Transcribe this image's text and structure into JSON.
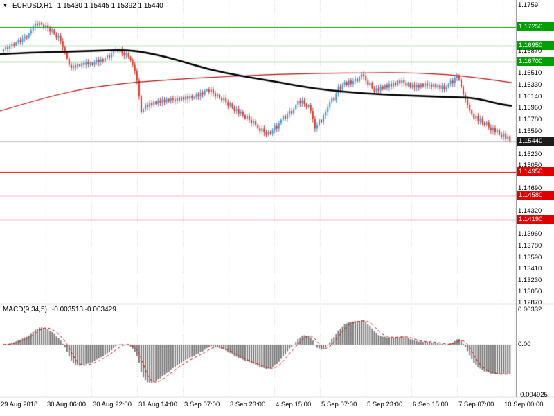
{
  "header": {
    "symbol": "EURUSD,H1",
    "quote": "1.15430 1.15445 1.15392 1.15440",
    "collapse_icon": "triangle-down-icon"
  },
  "macd_panel": {
    "label": "MACD(9,34,5)",
    "values": "-0.003513 -0.003429"
  },
  "colors": {
    "up_candle": "#3B97D3",
    "down_candle": "#E02F23",
    "ma_slow": "#000000",
    "ma_fast": "#B01010",
    "level_green": "#00A000",
    "level_red": "#E00000",
    "current_line": "#BDBDBD",
    "grid": "#D8D8D8",
    "separator": "#8C8C8C",
    "macd_bar": "#787878",
    "macd_signal": "#CC0000",
    "macd_zero": "#C4C4C4"
  },
  "chart_data": {
    "type": "candlestick",
    "title": "EURUSD,H1",
    "symbol": "EURUSD",
    "timeframe": "H1",
    "ohlc_display": {
      "open": "1.15430",
      "high": "1.15445",
      "low": "1.15392",
      "close": "1.15440"
    },
    "x_axis": {
      "labels": [
        "29 Aug 2018",
        "30 Aug 06:00",
        "30 Aug 22:00",
        "31 Aug 14:00",
        "3 Sep 07:00",
        "3 Sep 23:00",
        "4 Sep 15:00",
        "5 Sep 07:00",
        "5 Sep 23:00",
        "6 Sep 15:00",
        "7 Sep 07:00",
        "10 Sep 00:00"
      ]
    },
    "y_axis": {
      "ticks": [
        {
          "label": "1.1759",
          "value": 1.1759,
          "type": "normal"
        },
        {
          "label": "1.17250",
          "value": 1.1725,
          "type": "green"
        },
        {
          "label": "1.16950",
          "value": 1.1695,
          "type": "green"
        },
        {
          "label": "1.16870",
          "value": 1.1687,
          "type": "normal"
        },
        {
          "label": "1.16700",
          "value": 1.167,
          "type": "green"
        },
        {
          "label": "1.16510",
          "value": 1.1651,
          "type": "normal"
        },
        {
          "label": "1.16330",
          "value": 1.1633,
          "type": "normal"
        },
        {
          "label": "1.16140",
          "value": 1.1614,
          "type": "normal"
        },
        {
          "label": "1.15960",
          "value": 1.1596,
          "type": "normal"
        },
        {
          "label": "1.15780",
          "value": 1.1578,
          "type": "normal"
        },
        {
          "label": "1.15590",
          "value": 1.1559,
          "type": "normal"
        },
        {
          "label": "1.15440",
          "value": 1.1544,
          "type": "current"
        },
        {
          "label": "1.15230",
          "value": 1.1523,
          "type": "normal"
        },
        {
          "label": "1.15050",
          "value": 1.1505,
          "type": "normal"
        },
        {
          "label": "1.14950",
          "value": 1.1495,
          "type": "red"
        },
        {
          "label": "1.14690",
          "value": 1.1469,
          "type": "normal"
        },
        {
          "label": "1.14580",
          "value": 1.1458,
          "type": "red"
        },
        {
          "label": "1.14320",
          "value": 1.1432,
          "type": "normal"
        },
        {
          "label": "1.14190",
          "value": 1.1419,
          "type": "red"
        },
        {
          "label": "1.13960",
          "value": 1.1396,
          "type": "normal"
        },
        {
          "label": "1.13780",
          "value": 1.1378,
          "type": "normal"
        },
        {
          "label": "1.13590",
          "value": 1.1359,
          "type": "normal"
        },
        {
          "label": "1.13410",
          "value": 1.1341,
          "type": "normal"
        },
        {
          "label": "1.13230",
          "value": 1.1323,
          "type": "normal"
        },
        {
          "label": "1.13050",
          "value": 1.1305,
          "type": "normal"
        },
        {
          "label": "1.12870",
          "value": 1.1287,
          "type": "normal"
        }
      ]
    },
    "levels": [
      {
        "price": 1.1725,
        "type": "green"
      },
      {
        "price": 1.1695,
        "type": "green"
      },
      {
        "price": 1.167,
        "type": "green"
      },
      {
        "price": 1.1495,
        "type": "red"
      },
      {
        "price": 1.1458,
        "type": "red"
      },
      {
        "price": 1.1419,
        "type": "red"
      },
      {
        "price": 1.1544,
        "type": "current"
      }
    ],
    "closes": [
      1.169,
      1.1693,
      1.16905,
      1.1695,
      1.1698,
      1.1696,
      1.1701,
      1.1704,
      1.1702,
      1.1707,
      1.171,
      1.1708,
      1.1715,
      1.172,
      1.1726,
      1.1731,
      1.1728,
      1.1732,
      1.1729,
      1.1725,
      1.1728,
      1.1723,
      1.1718,
      1.1721,
      1.1714,
      1.1708,
      1.1711,
      1.1703,
      1.1693,
      1.1685,
      1.1675,
      1.1665,
      1.166,
      1.1664,
      1.1661,
      1.1666,
      1.1663,
      1.1668,
      1.1665,
      1.167,
      1.1666,
      1.1668,
      1.1665,
      1.167,
      1.1673,
      1.1669,
      1.1674,
      1.1671,
      1.1676,
      1.168,
      1.1677,
      1.1683,
      1.1687,
      1.169,
      1.1686,
      1.1689,
      1.1684,
      1.168,
      1.1683,
      1.1678,
      1.1672,
      1.1665,
      1.1655,
      1.164,
      1.1615,
      1.159,
      1.1595,
      1.1602,
      1.1598,
      1.1605,
      1.1601,
      1.1607,
      1.1603,
      1.1609,
      1.1605,
      1.161,
      1.1606,
      1.1611,
      1.1607,
      1.1612,
      1.161,
      1.1608,
      1.1613,
      1.1609,
      1.1614,
      1.161,
      1.1615,
      1.1611,
      1.1616,
      1.1612,
      1.1614,
      1.1618,
      1.1615,
      1.1621,
      1.1618,
      1.1624,
      1.1626,
      1.1622,
      1.1626,
      1.162,
      1.1615,
      1.1618,
      1.1612,
      1.1609,
      1.1613,
      1.1606,
      1.16,
      1.1604,
      1.1597,
      1.1592,
      1.1595,
      1.1588,
      1.1591,
      1.1585,
      1.158,
      1.1584,
      1.1578,
      1.1573,
      1.1576,
      1.157,
      1.1565,
      1.156,
      1.1564,
      1.1558,
      1.1555,
      1.1559,
      1.1556,
      1.1562,
      1.1568,
      1.1564,
      1.1572,
      1.1578,
      1.1584,
      1.158,
      1.1587,
      1.1592,
      1.1588,
      1.1595,
      1.1601,
      1.1608,
      1.1604,
      1.1609,
      1.1603,
      1.1598,
      1.1601,
      1.1592,
      1.1579,
      1.1564,
      1.157,
      1.1578,
      1.1574,
      1.1585,
      1.159,
      1.1598,
      1.1606,
      1.1613,
      1.1609,
      1.162,
      1.163,
      1.1626,
      1.1633,
      1.1638,
      1.1633,
      1.164,
      1.1635,
      1.1639,
      1.1643,
      1.1639,
      1.1646,
      1.165,
      1.1647,
      1.164,
      1.1633,
      1.1637,
      1.1628,
      1.1623,
      1.1628,
      1.1624,
      1.1631,
      1.1627,
      1.1633,
      1.1629,
      1.1635,
      1.1631,
      1.1637,
      1.1633,
      1.164,
      1.1636,
      1.1641,
      1.1637,
      1.1632,
      1.1636,
      1.163,
      1.1634,
      1.1629,
      1.1633,
      1.1629,
      1.1635,
      1.1631,
      1.1636,
      1.1632,
      1.1634,
      1.163,
      1.1635,
      1.1629,
      1.1633,
      1.1627,
      1.1632,
      1.1626,
      1.163,
      1.1635,
      1.164,
      1.1636,
      1.1644,
      1.1648,
      1.1642,
      1.163,
      1.1618,
      1.161,
      1.1602,
      1.1593,
      1.1587,
      1.158,
      1.1584,
      1.1576,
      1.158,
      1.1573,
      1.157,
      1.1574,
      1.1566,
      1.1561,
      1.1565,
      1.1558,
      1.1562,
      1.1555,
      1.1551,
      1.1556,
      1.1548,
      1.1552,
      1.1544
    ],
    "overlays": [
      {
        "name": "ma-slow",
        "points": [
          [
            0,
            1.1682
          ],
          [
            50,
            1.1685
          ],
          [
            100,
            1.1686
          ],
          [
            150,
            1.1688
          ],
          [
            180,
            1.1689
          ],
          [
            210,
            1.1685
          ],
          [
            250,
            1.1675
          ],
          [
            300,
            1.1658
          ],
          [
            350,
            1.1647
          ],
          [
            400,
            1.1638
          ],
          [
            450,
            1.1628
          ],
          [
            500,
            1.1622
          ],
          [
            550,
            1.1618
          ],
          [
            600,
            1.1616
          ],
          [
            650,
            1.1614
          ],
          [
            680,
            1.1613
          ],
          [
            700,
            1.1609
          ],
          [
            720,
            1.1603
          ],
          [
            739,
            1.16
          ]
        ]
      },
      {
        "name": "ma-fast",
        "points": [
          [
            0,
            1.1592
          ],
          [
            40,
            1.1605
          ],
          [
            80,
            1.1617
          ],
          [
            120,
            1.1627
          ],
          [
            160,
            1.1633
          ],
          [
            200,
            1.1638
          ],
          [
            240,
            1.1641
          ],
          [
            280,
            1.1644
          ],
          [
            320,
            1.1646
          ],
          [
            360,
            1.1648
          ],
          [
            400,
            1.165
          ],
          [
            440,
            1.1651
          ],
          [
            480,
            1.1652
          ],
          [
            520,
            1.1652
          ],
          [
            560,
            1.1653
          ],
          [
            600,
            1.1652
          ],
          [
            640,
            1.165
          ],
          [
            670,
            1.1647
          ],
          [
            700,
            1.1643
          ],
          [
            739,
            1.1637
          ]
        ]
      }
    ],
    "macd": {
      "params": "9,34,5",
      "line_value": -0.003513,
      "signal_value": -0.003429,
      "axis": [
        {
          "label": "0.00332",
          "value": 0.00332
        },
        {
          "label": "0.00",
          "value": 0
        },
        {
          "label": "-0.004925",
          "value": -0.004925
        }
      ]
    }
  }
}
